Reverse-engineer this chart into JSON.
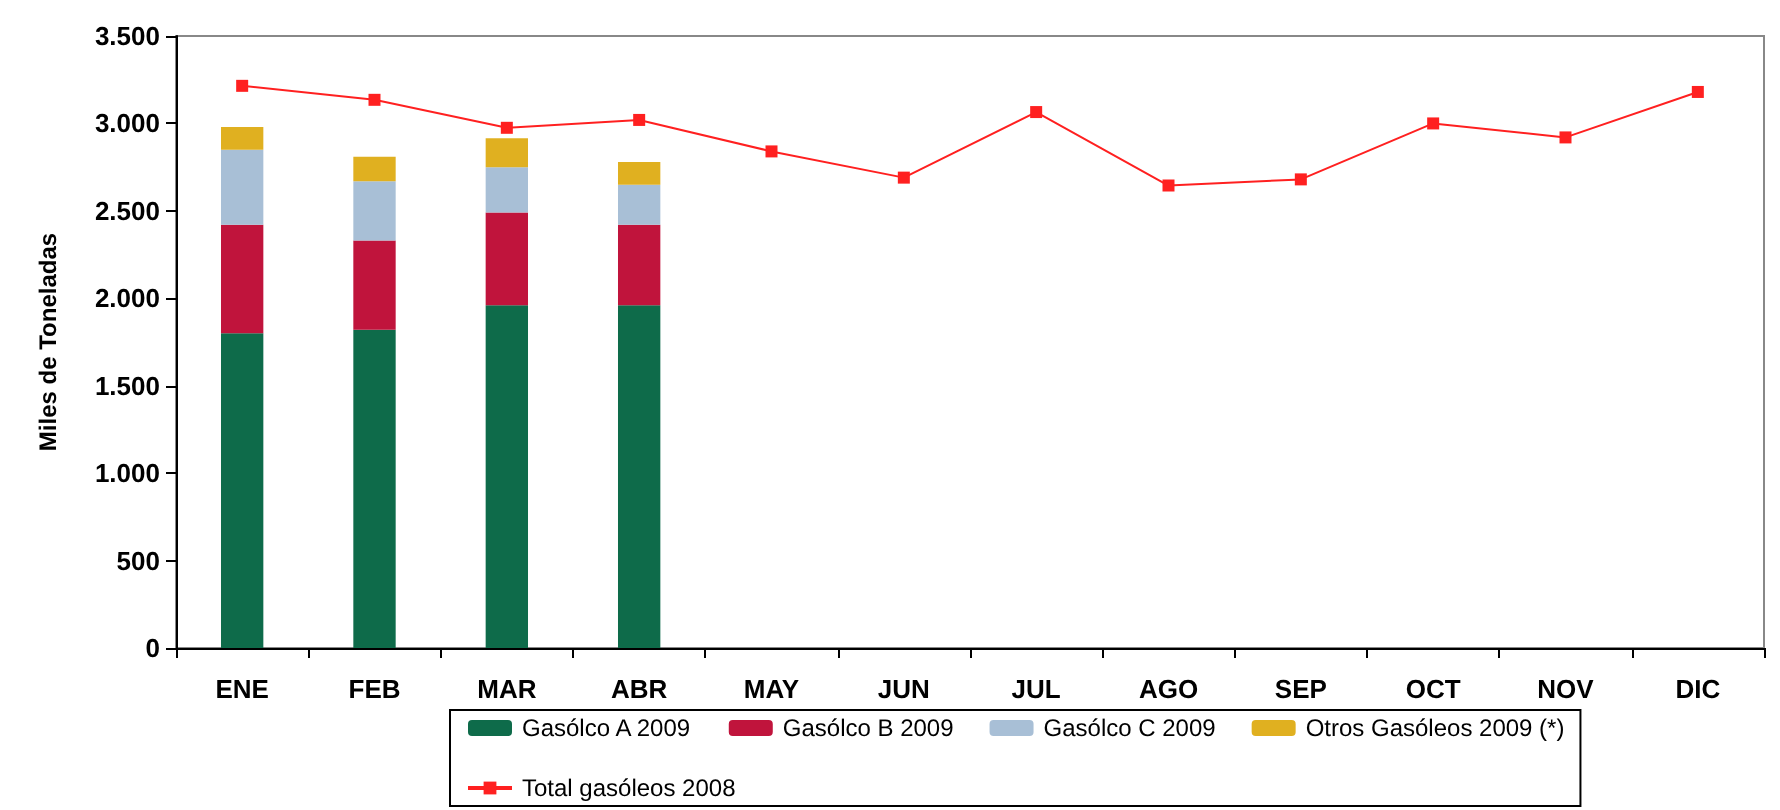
{
  "chart_data": {
    "type": "bar",
    "stacked": true,
    "ylabel": "Miles de Toneladas",
    "categories": [
      "ENE",
      "FEB",
      "MAR",
      "ABR",
      "MAY",
      "JUN",
      "JUL",
      "AGO",
      "SEP",
      "OCT",
      "NOV",
      "DIC"
    ],
    "ylim": [
      0,
      3500
    ],
    "yticks": [
      {
        "value": 0,
        "label": "0"
      },
      {
        "value": 500,
        "label": "500"
      },
      {
        "value": 1000,
        "label": "1.000"
      },
      {
        "value": 1500,
        "label": "1.500"
      },
      {
        "value": 2000,
        "label": "2.000"
      },
      {
        "value": 2500,
        "label": "2.500"
      },
      {
        "value": 3000,
        "label": "3.000"
      },
      {
        "value": 3500,
        "label": "3.500"
      }
    ],
    "series": [
      {
        "name": "Gasólco A 2009",
        "color": "#0e6b4a",
        "values": [
          1800,
          1820,
          1960,
          1960,
          null,
          null,
          null,
          null,
          null,
          null,
          null,
          null
        ]
      },
      {
        "name": "Gasólco B 2009",
        "color": "#c0143c",
        "values": [
          620,
          510,
          530,
          460,
          null,
          null,
          null,
          null,
          null,
          null,
          null,
          null
        ]
      },
      {
        "name": "Gasólco C 2009",
        "color": "#a8bfd6",
        "values": [
          430,
          340,
          260,
          230,
          null,
          null,
          null,
          null,
          null,
          null,
          null,
          null
        ]
      },
      {
        "name": "Otros Gasóleos 2009 (*)",
        "color": "#e0b020",
        "values": [
          130,
          140,
          165,
          130,
          null,
          null,
          null,
          null,
          null,
          null,
          null,
          null
        ]
      },
      {
        "name": "Total gasóleos 2008",
        "type": "line",
        "color": "#ff2020",
        "marker": "square",
        "values": [
          3215,
          3135,
          2975,
          3020,
          2840,
          2690,
          3065,
          2645,
          2680,
          3000,
          2920,
          3180
        ]
      }
    ],
    "grid": false,
    "legend": "bottom"
  }
}
